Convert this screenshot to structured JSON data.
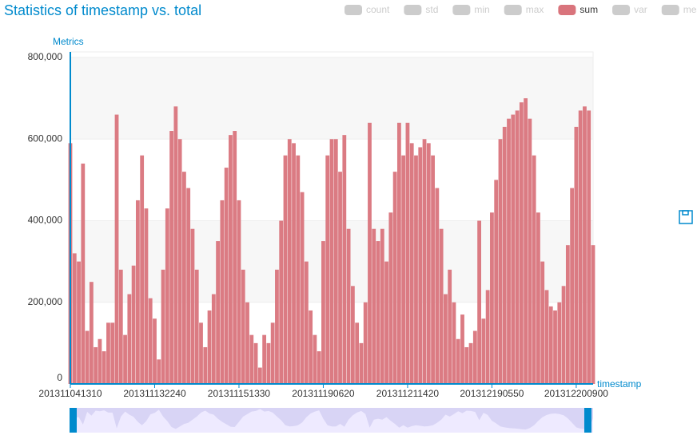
{
  "chart_data": {
    "type": "bar",
    "title": "Statistics of timestamp vs. total",
    "y_axis_name": "Metrics",
    "x_axis_name": "timestamp",
    "legend": [
      {
        "name": "count",
        "active": false
      },
      {
        "name": "std",
        "active": false
      },
      {
        "name": "min",
        "active": false
      },
      {
        "name": "max",
        "active": false
      },
      {
        "name": "sum",
        "active": true
      },
      {
        "name": "var",
        "active": false
      },
      {
        "name": "mean",
        "active": false
      }
    ],
    "categories": [
      "201311041310",
      null,
      null,
      null,
      null,
      null,
      null,
      null,
      null,
      null,
      null,
      null,
      null,
      null,
      null,
      null,
      null,
      null,
      null,
      null,
      "201311132240",
      null,
      null,
      null,
      null,
      null,
      null,
      null,
      null,
      null,
      null,
      null,
      null,
      null,
      null,
      null,
      null,
      null,
      null,
      null,
      "201311151330",
      null,
      null,
      null,
      null,
      null,
      null,
      null,
      null,
      null,
      null,
      null,
      null,
      null,
      null,
      null,
      null,
      null,
      null,
      null,
      "201311190620",
      null,
      null,
      null,
      null,
      null,
      null,
      null,
      null,
      null,
      null,
      null,
      null,
      null,
      null,
      null,
      null,
      null,
      null,
      null,
      "201311211420",
      null,
      null,
      null,
      null,
      null,
      null,
      null,
      null,
      null,
      null,
      null,
      null,
      null,
      null,
      null,
      null,
      null,
      null,
      null,
      "201312190550",
      null,
      null,
      null,
      null,
      null,
      null,
      null,
      null,
      null,
      null,
      null,
      null,
      null,
      null,
      null,
      null,
      null,
      null,
      null,
      "201312200900",
      null,
      null,
      null,
      null
    ],
    "series": [
      {
        "name": "sum",
        "color": "#d9747c",
        "values": [
          590000,
          320000,
          300000,
          540000,
          130000,
          250000,
          90000,
          110000,
          80000,
          150000,
          150000,
          660000,
          280000,
          120000,
          220000,
          290000,
          450000,
          560000,
          430000,
          210000,
          160000,
          60000,
          280000,
          430000,
          620000,
          680000,
          600000,
          520000,
          480000,
          380000,
          280000,
          150000,
          90000,
          180000,
          220000,
          350000,
          450000,
          530000,
          610000,
          620000,
          450000,
          280000,
          200000,
          120000,
          100000,
          40000,
          120000,
          100000,
          150000,
          280000,
          400000,
          560000,
          600000,
          590000,
          560000,
          470000,
          300000,
          180000,
          120000,
          80000,
          350000,
          560000,
          600000,
          600000,
          520000,
          610000,
          380000,
          240000,
          150000,
          100000,
          200000,
          640000,
          380000,
          350000,
          380000,
          300000,
          420000,
          520000,
          640000,
          560000,
          640000,
          590000,
          560000,
          580000,
          600000,
          590000,
          560000,
          480000,
          380000,
          220000,
          280000,
          200000,
          110000,
          170000,
          90000,
          100000,
          130000,
          400000,
          160000,
          230000,
          420000,
          500000,
          600000,
          630000,
          650000,
          660000,
          670000,
          690000,
          700000,
          650000,
          560000,
          420000,
          300000,
          230000,
          190000,
          180000,
          200000,
          240000,
          340000,
          480000,
          630000,
          670000,
          680000,
          670000,
          340000
        ]
      }
    ],
    "ylim": [
      0,
      800000
    ],
    "yticks": [
      0,
      {
        "value": 200000,
        "label": "200,000"
      },
      {
        "value": 400000,
        "label": "400,000"
      },
      {
        "value": 600000,
        "label": "600,000"
      },
      {
        "value": 800000,
        "label": "800,000"
      }
    ],
    "grid": true
  }
}
